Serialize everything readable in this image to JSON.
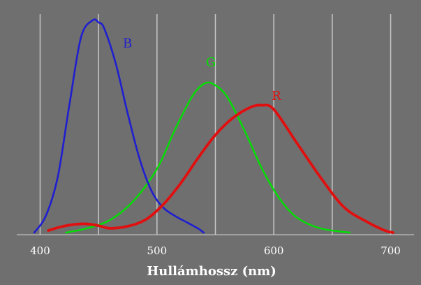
{
  "chart_data": {
    "type": "line",
    "title": "",
    "xlabel": "Hullámhossz (nm)",
    "ylabel": "",
    "xlim": [
      380,
      720
    ],
    "ylim": [
      0,
      1
    ],
    "x_ticks": [
      400,
      500,
      600,
      700
    ],
    "x_gridlines": [
      400,
      450,
      500,
      550,
      600,
      650,
      700
    ],
    "grid": true,
    "legend": "inline labels near curves",
    "colors": {
      "background": "#6f6f6f",
      "plot_background": "#6f6f6f",
      "grid": "#c8c8c8",
      "text": "#ffffff"
    },
    "series": [
      {
        "name": "B",
        "color": "#1f1fd0",
        "x": [
          395,
          405,
          415,
          425,
          435,
          445,
          450,
          455,
          465,
          475,
          485,
          495,
          505,
          515,
          525,
          535,
          540
        ],
        "y": [
          0.0,
          0.08,
          0.26,
          0.6,
          0.92,
          1.0,
          0.99,
          0.96,
          0.79,
          0.56,
          0.35,
          0.2,
          0.12,
          0.08,
          0.05,
          0.02,
          0.0
        ]
      },
      {
        "name": "G",
        "color": "#00e000",
        "x": [
          422,
          440,
          460,
          480,
          500,
          515,
          530,
          540,
          548,
          560,
          575,
          590,
          605,
          620,
          640,
          665
        ],
        "y": [
          0.0,
          0.02,
          0.06,
          0.15,
          0.3,
          0.48,
          0.64,
          0.7,
          0.7,
          0.64,
          0.48,
          0.3,
          0.16,
          0.07,
          0.02,
          0.0
        ]
      },
      {
        "name": "R",
        "color": "#e01010",
        "x": [
          407,
          420,
          432,
          442,
          452,
          460,
          475,
          490,
          505,
          520,
          535,
          550,
          565,
          580,
          590,
          600,
          620,
          640,
          660,
          680,
          695,
          702
        ],
        "y": [
          0.01,
          0.03,
          0.04,
          0.04,
          0.03,
          0.02,
          0.03,
          0.06,
          0.13,
          0.23,
          0.35,
          0.46,
          0.54,
          0.59,
          0.6,
          0.58,
          0.42,
          0.26,
          0.12,
          0.05,
          0.01,
          0.0
        ]
      }
    ]
  }
}
